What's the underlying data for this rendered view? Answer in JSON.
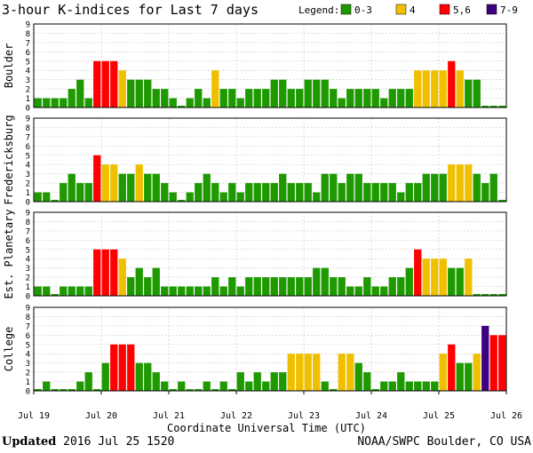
{
  "chart_data": {
    "type": "bar",
    "title": "3-hour K-indices for Last 7 days",
    "legend": {
      "label": "Legend:",
      "placement": "top-right",
      "entries": [
        {
          "label": "0-3",
          "color": "#1e9a00"
        },
        {
          "label": "4",
          "color": "#f0c000"
        },
        {
          "label": "5,6",
          "color": "#ff0000"
        },
        {
          "label": "7-9",
          "color": "#3c0080"
        }
      ]
    },
    "xlabel": "Coordinate Universal Time (UTC)",
    "x_ticks": [
      "Jul 19",
      "Jul 20",
      "Jul 21",
      "Jul 22",
      "Jul 23",
      "Jul 24",
      "Jul 25",
      "Jul 26"
    ],
    "y_ticks": [
      "0",
      "1",
      "2",
      "3",
      "4",
      "5",
      "6",
      "7",
      "8",
      "9"
    ],
    "ylim": [
      0,
      9
    ],
    "grid": true,
    "series": [
      {
        "name": "Boulder",
        "values": [
          1,
          1,
          1,
          1,
          2,
          3,
          1,
          5,
          5,
          5,
          4,
          3,
          3,
          3,
          2,
          2,
          1,
          0,
          1,
          2,
          1,
          4,
          2,
          2,
          1,
          2,
          2,
          2,
          3,
          3,
          2,
          2,
          3,
          3,
          3,
          2,
          1,
          2,
          2,
          2,
          2,
          1,
          2,
          2,
          2,
          4,
          4,
          4,
          4,
          5,
          4,
          3,
          3,
          0,
          0,
          0
        ]
      },
      {
        "name": "Fredericksburg",
        "values": [
          1,
          1,
          0,
          2,
          3,
          2,
          2,
          5,
          4,
          4,
          3,
          3,
          4,
          3,
          3,
          2,
          1,
          0,
          1,
          2,
          3,
          2,
          1,
          2,
          1,
          2,
          2,
          2,
          2,
          3,
          2,
          2,
          2,
          1,
          3,
          3,
          2,
          3,
          3,
          2,
          2,
          2,
          2,
          1,
          2,
          2,
          3,
          3,
          3,
          4,
          4,
          4,
          3,
          2,
          3,
          0
        ]
      },
      {
        "name": "Est. Planetary",
        "values": [
          1,
          1,
          0,
          1,
          1,
          1,
          1,
          5,
          5,
          5,
          4,
          2,
          3,
          2,
          3,
          1,
          1,
          1,
          1,
          1,
          1,
          2,
          1,
          2,
          1,
          2,
          2,
          2,
          2,
          2,
          2,
          2,
          2,
          3,
          3,
          2,
          2,
          1,
          1,
          2,
          1,
          1,
          2,
          2,
          3,
          5,
          4,
          4,
          4,
          3,
          3,
          4,
          0,
          0,
          0,
          0
        ]
      },
      {
        "name": "College",
        "values": [
          0,
          1,
          0,
          0,
          0,
          1,
          2,
          0,
          3,
          5,
          5,
          5,
          3,
          3,
          2,
          1,
          0,
          1,
          0,
          0,
          1,
          0,
          1,
          0,
          2,
          1,
          2,
          1,
          2,
          2,
          4,
          4,
          4,
          4,
          1,
          0,
          4,
          4,
          3,
          2,
          0,
          1,
          1,
          2,
          1,
          1,
          1,
          1,
          4,
          5,
          3,
          3,
          4,
          7,
          6,
          6
        ]
      }
    ]
  },
  "footer": {
    "updated_label": "Updated",
    "updated_value": "2016 Jul 25 1520",
    "source": "NOAA/SWPC Boulder, CO USA"
  }
}
